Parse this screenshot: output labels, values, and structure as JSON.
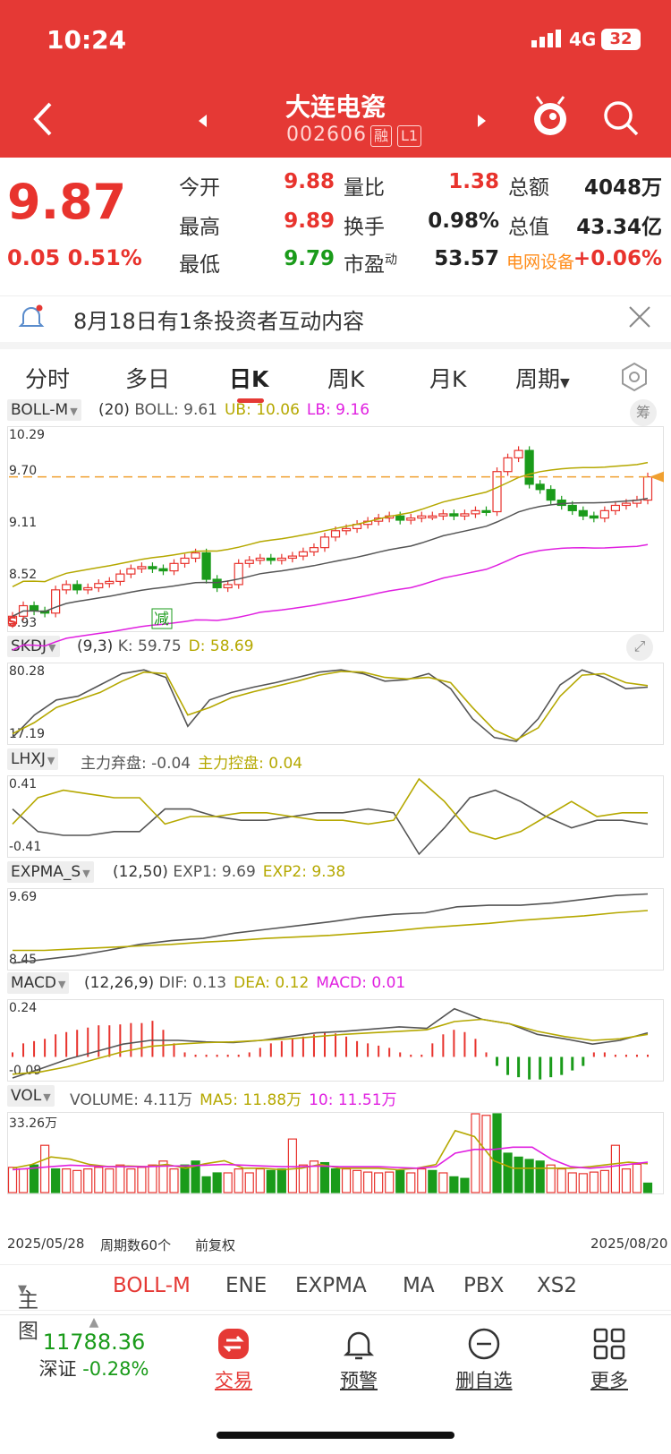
{
  "status_bar": {
    "time": "10:24",
    "network": "4G",
    "battery": "32"
  },
  "header": {
    "title": "大连电瓷",
    "code": "002606",
    "tag_margin": "融",
    "tag_level": "L1"
  },
  "quote": {
    "price": "9.87",
    "change": "0.05",
    "change_pct": "0.51%",
    "rows": [
      {
        "l1": "今开",
        "v1": "9.88",
        "l2": "量比",
        "v2": "1.38",
        "l3": "总额",
        "v3": "4048万"
      },
      {
        "l1": "最高",
        "v1": "9.89",
        "l2": "换手",
        "v2": "0.98%",
        "l3": "总值",
        "v3": "43.34亿"
      },
      {
        "l1": "最低",
        "v1": "9.79",
        "l2": "市盈",
        "l2_sup": "动",
        "v2": "53.57",
        "l3": "电网设备",
        "v3": "+0.06%"
      }
    ]
  },
  "notice": {
    "text": "8月18日有1条投资者互动内容"
  },
  "period_tabs": [
    "分时",
    "多日",
    "日K",
    "周K",
    "月K",
    "周期"
  ],
  "active_tab": "日K",
  "chart_data": [
    {
      "type": "candlestick",
      "title": "BOLL-M",
      "params": "(20)",
      "legend": [
        {
          "name": "BOLL",
          "value": "9.61",
          "color": "#555555"
        },
        {
          "name": "UB",
          "value": "10.06",
          "color": "#b5a800"
        },
        {
          "name": "LB",
          "value": "9.16",
          "color": "#e020e0"
        }
      ],
      "y_labels": [
        "10.29",
        "9.70",
        "9.11",
        "8.52",
        "8.93"
      ],
      "marker_sell": "S",
      "marker_reduce": "减",
      "chip_button": "筹",
      "current_price_line": 9.87
    },
    {
      "type": "line",
      "title": "SKDJ",
      "params": "(9,3)",
      "legend": [
        {
          "name": "K",
          "value": "59.75",
          "color": "#555555"
        },
        {
          "name": "D",
          "value": "58.69",
          "color": "#b5a800"
        }
      ],
      "y_labels": [
        "80.28",
        "17.19"
      ]
    },
    {
      "type": "line",
      "title": "LHXJ",
      "params": "",
      "legend": [
        {
          "name": "主力弃盘",
          "value": "-0.04",
          "color": "#555555"
        },
        {
          "name": "主力控盘",
          "value": "0.04",
          "color": "#b5a800"
        }
      ],
      "y_labels": [
        "0.41",
        "-0.41"
      ]
    },
    {
      "type": "line",
      "title": "EXPMA_S",
      "params": "(12,50)",
      "legend": [
        {
          "name": "EXP1",
          "value": "9.69",
          "color": "#555555"
        },
        {
          "name": "EXP2",
          "value": "9.38",
          "color": "#b5a800"
        }
      ],
      "y_labels": [
        "9.69",
        "8.45"
      ]
    },
    {
      "type": "bar",
      "title": "MACD",
      "params": "(12,26,9)",
      "legend": [
        {
          "name": "DIF",
          "value": "0.13",
          "color": "#555555"
        },
        {
          "name": "DEA",
          "value": "0.12",
          "color": "#b5a800"
        },
        {
          "name": "MACD",
          "value": "0.01",
          "color": "#e020e0"
        }
      ],
      "y_labels": [
        "0.24",
        "-0.09"
      ]
    },
    {
      "type": "bar",
      "title": "VOL",
      "params": "",
      "legend": [
        {
          "name": "VOLUME",
          "value": "4.11万",
          "color": "#555555"
        },
        {
          "name": "MA5",
          "value": "11.88万",
          "color": "#b5a800"
        },
        {
          "name": "10",
          "value": "11.51万",
          "color": "#e020e0"
        }
      ],
      "y_labels": [
        "33.26万"
      ]
    }
  ],
  "footer_axis": {
    "start": "2025/05/28",
    "period_count": "周期数60个",
    "adjust": "前复权",
    "end": "2025/08/20"
  },
  "main_tabs": {
    "label": "主图",
    "items": [
      "BOLL-M",
      "ENE",
      "EXPMA",
      "MA",
      "PBX",
      "XS2"
    ]
  },
  "bottom_nav": {
    "index_value": "11788.36",
    "index_name": "深证",
    "index_change": "-0.28%",
    "items": [
      "交易",
      "预警",
      "删自选",
      "更多"
    ]
  },
  "colors": {
    "brand": "#e53935",
    "up": "#e8332d",
    "down": "#1a9b1a",
    "orange": "#ff8c1a"
  }
}
